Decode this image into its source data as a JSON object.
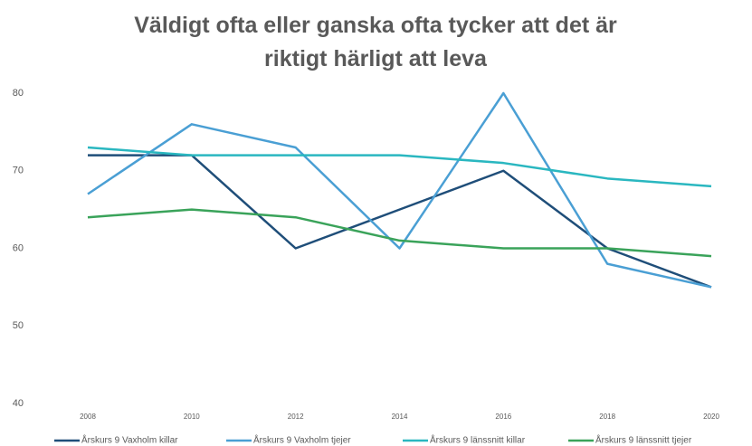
{
  "chart_data": {
    "type": "line",
    "title": "Väldigt ofta eller ganska ofta tycker att det är riktigt härligt att leva",
    "categories": [
      "2008",
      "2010",
      "2012",
      "2014",
      "2016",
      "2018",
      "2020"
    ],
    "series": [
      {
        "name": "Årskurs 9 Vaxholm killar",
        "color": "#1f4e79",
        "values": [
          72,
          72,
          60,
          65,
          70,
          60,
          55
        ]
      },
      {
        "name": "Årskurs 9 Vaxholm tjejer",
        "color": "#4a9fd4",
        "values": [
          67,
          76,
          73,
          60,
          80,
          58,
          55
        ]
      },
      {
        "name": "Årskurs 9 länssnitt killar",
        "color": "#2ab7c0",
        "values": [
          73,
          72,
          72,
          72,
          71,
          69,
          68
        ]
      },
      {
        "name": "Årskurs 9 länssnitt tjejer",
        "color": "#3aa35a",
        "values": [
          64,
          65,
          64,
          61,
          60,
          60,
          59
        ]
      }
    ],
    "ylim": [
      40,
      80
    ],
    "yticks": [
      40,
      50,
      60,
      70,
      80
    ],
    "grid": false,
    "legend": "bottom"
  }
}
